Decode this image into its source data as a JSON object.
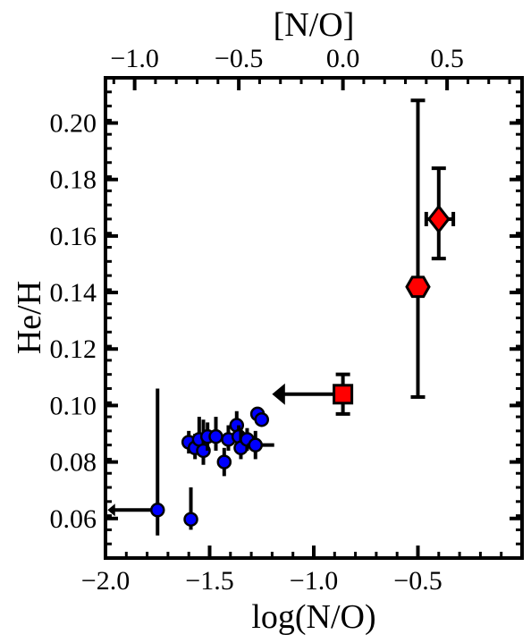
{
  "chart_data": {
    "type": "scatter",
    "xlabel": "log(N/O)",
    "ylabel": "He/H",
    "top_xlabel": "[N/O]",
    "xlim": [
      -2.0,
      0.0
    ],
    "ylim": [
      0.046,
      0.216
    ],
    "x_ticks": [
      -2.0,
      -1.5,
      -1.0,
      -0.5
    ],
    "x_tick_labels": [
      "−2.0",
      "−1.5",
      "−1.0",
      "−0.5"
    ],
    "y_ticks": [
      0.06,
      0.08,
      0.1,
      0.12,
      0.14,
      0.16,
      0.18,
      0.2
    ],
    "y_tick_labels": [
      "0.06",
      "0.08",
      "0.10",
      "0.12",
      "0.14",
      "0.16",
      "0.18",
      "0.20"
    ],
    "top_ticks": [
      -1.0,
      -0.5,
      0.0,
      0.5
    ],
    "top_tick_labels": [
      "−1.0",
      "−0.5",
      "0.0",
      "0.5"
    ],
    "top_axis_offset": -0.86,
    "grid": false,
    "colors": {
      "blue_points": "#0000ff",
      "red_points": "#ff0000",
      "edge": "#000000"
    },
    "series": [
      {
        "marker": "circle",
        "color": "#0000ff",
        "points": [
          {
            "x": -1.75,
            "y": 0.063,
            "ylo": 0.054,
            "yhi": 0.106,
            "upper_limit_to": -1.99
          },
          {
            "x": -1.59,
            "y": 0.0597,
            "ylo": 0.056,
            "yhi": 0.071
          },
          {
            "x": -1.6,
            "y": 0.087,
            "ylo": 0.083,
            "yhi": 0.091
          },
          {
            "x": -1.57,
            "y": 0.085,
            "ylo": 0.081,
            "yhi": 0.09
          },
          {
            "x": -1.55,
            "y": 0.088,
            "ylo": 0.083,
            "yhi": 0.096
          },
          {
            "x": -1.53,
            "y": 0.084,
            "ylo": 0.079,
            "yhi": 0.095
          },
          {
            "x": -1.51,
            "y": 0.089,
            "ylo": 0.084,
            "yhi": 0.094
          },
          {
            "x": -1.47,
            "y": 0.089,
            "ylo": 0.084,
            "yhi": 0.096
          },
          {
            "x": -1.43,
            "y": 0.08,
            "ylo": 0.075,
            "yhi": 0.085
          },
          {
            "x": -1.41,
            "y": 0.088,
            "ylo": 0.084,
            "yhi": 0.093
          },
          {
            "x": -1.37,
            "y": 0.093,
            "ylo": 0.088,
            "yhi": 0.098
          },
          {
            "x": -1.36,
            "y": 0.089,
            "ylo": 0.085,
            "yhi": 0.093
          },
          {
            "x": -1.35,
            "y": 0.085,
            "ylo": 0.081,
            "yhi": 0.092
          },
          {
            "x": -1.32,
            "y": 0.088,
            "ylo": 0.084,
            "yhi": 0.092
          },
          {
            "x": -1.28,
            "y": 0.086,
            "ylo": 0.081,
            "yhi": 0.091,
            "xlo": -1.32,
            "xhi": -1.19
          },
          {
            "x": -1.27,
            "y": 0.097,
            "ylo": 0.095,
            "yhi": 0.099
          },
          {
            "x": -1.25,
            "y": 0.095,
            "ylo": 0.093,
            "yhi": 0.097
          }
        ]
      },
      {
        "marker": "square",
        "color": "#ff0000",
        "points": [
          {
            "x": -0.86,
            "y": 0.104,
            "ylo": 0.097,
            "yhi": 0.111,
            "upper_limit_to": -1.2
          }
        ]
      },
      {
        "marker": "hexagon",
        "color": "#ff0000",
        "points": [
          {
            "x": -0.5,
            "y": 0.142,
            "ylo": 0.103,
            "yhi": 0.208,
            "xlo": -0.53,
            "xhi": -0.47
          }
        ]
      },
      {
        "marker": "diamond",
        "color": "#ff0000",
        "points": [
          {
            "x": -0.4,
            "y": 0.166,
            "ylo": 0.152,
            "yhi": 0.184,
            "xlo": -0.46,
            "xhi": -0.33
          }
        ]
      }
    ]
  }
}
